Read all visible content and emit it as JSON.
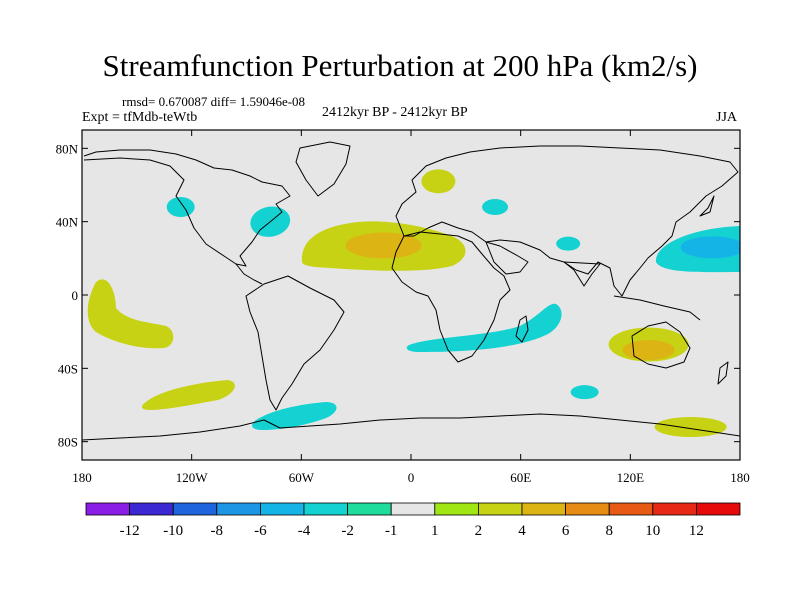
{
  "header": {
    "title": "Streamfunction Perturbation at 200 hPa (km2/s)",
    "stats": "rmsd= 0.670087 diff= 1.59046e-08",
    "expt": "Expt = tfMdb-teWtb",
    "period": "2412kyr BP - 2412kyr BP",
    "season": "JJA"
  },
  "chart_data": {
    "type": "heatmap",
    "title": "Streamfunction Perturbation at 200 hPa (km2/s)",
    "projection": "cylindrical-equidistant",
    "xlim": [
      -180,
      180
    ],
    "ylim": [
      -90,
      90
    ],
    "x_ticks": [
      {
        "value": -180,
        "label": "180"
      },
      {
        "value": -120,
        "label": "120W"
      },
      {
        "value": -60,
        "label": "60W"
      },
      {
        "value": 0,
        "label": "0"
      },
      {
        "value": 60,
        "label": "60E"
      },
      {
        "value": 120,
        "label": "120E"
      },
      {
        "value": 180,
        "label": "180"
      }
    ],
    "y_ticks": [
      {
        "value": 80,
        "label": "80N"
      },
      {
        "value": 40,
        "label": "40N"
      },
      {
        "value": 0,
        "label": "0"
      },
      {
        "value": -40,
        "label": "40S"
      },
      {
        "value": -80,
        "label": "80S"
      }
    ],
    "background_color": "#e6e6e6",
    "colorbar": {
      "levels": [
        "-12",
        "-10",
        "-8",
        "-6",
        "-4",
        "-2",
        "-1",
        "1",
        "2",
        "4",
        "6",
        "8",
        "10",
        "12"
      ],
      "colors": [
        "#8a1ee6",
        "#3c28d2",
        "#1e64dc",
        "#1e96e6",
        "#14b4e6",
        "#14d2d2",
        "#1edc9b",
        "#e6e6e6",
        "#a0e614",
        "#c8d214",
        "#dcb414",
        "#e68c14",
        "#e65a14",
        "#e62814",
        "#e60a0a"
      ]
    },
    "features": [
      {
        "name": "pacific-north",
        "lon": -126,
        "lat": 48,
        "level": "-2"
      },
      {
        "name": "north-america-east",
        "lon": -77,
        "lat": 40,
        "level": "-2"
      },
      {
        "name": "scandinavia",
        "lon": 15,
        "lat": 62,
        "level": "2"
      },
      {
        "name": "eastern-europe",
        "lon": 46,
        "lat": 48,
        "level": "-2"
      },
      {
        "name": "atlantic-africa",
        "lon": -8,
        "lat": 25,
        "level": "2",
        "core_level": "4",
        "core_lon": -15,
        "core_lat": 27
      },
      {
        "name": "central-asia",
        "lon": 86,
        "lat": 28,
        "level": "-2"
      },
      {
        "name": "west-pacific",
        "lon": 162,
        "lat": 28,
        "level": "-2",
        "core_level": "-4",
        "core_lon": 165,
        "core_lat": 26
      },
      {
        "name": "east-pacific-tropical",
        "lon": -150,
        "lat": -15,
        "level": "2"
      },
      {
        "name": "south-atlantic-indian",
        "lon": 35,
        "lat": -27,
        "level": "-2"
      },
      {
        "name": "australia",
        "lon": 130,
        "lat": -27,
        "level": "2",
        "core_level": "4",
        "core_lon": 130,
        "core_lat": -30
      },
      {
        "name": "south-indian",
        "lon": 95,
        "lat": -53,
        "level": "-2"
      },
      {
        "name": "south-pacific",
        "lon": -138,
        "lat": -55,
        "level": "2"
      },
      {
        "name": "drake-passage",
        "lon": -63,
        "lat": -67,
        "level": "-2"
      },
      {
        "name": "antarctica-pacific",
        "lon": 153,
        "lat": -72,
        "level": "2"
      }
    ]
  }
}
